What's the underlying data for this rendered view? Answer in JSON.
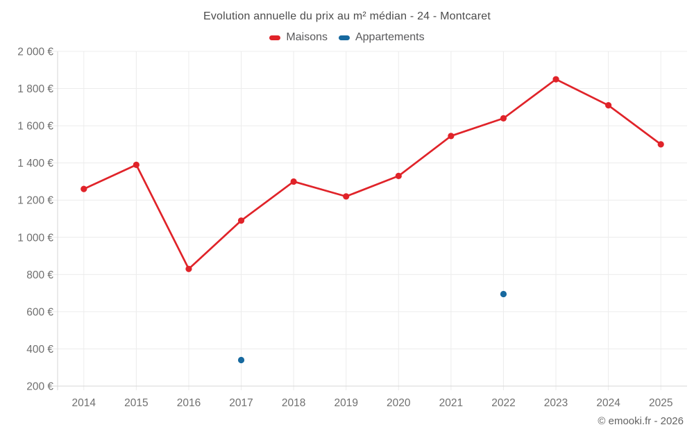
{
  "header": {
    "title": "Evolution annuelle du prix au m² médian - 24 - Montcaret"
  },
  "legend": {
    "items": [
      {
        "label": "Maisons",
        "color": "#e02329"
      },
      {
        "label": "Appartements",
        "color": "#17699f"
      }
    ]
  },
  "footer": {
    "credit": "© emooki.fr - 2026"
  },
  "colors": {
    "maisons": "#e02329",
    "appartements": "#17699f",
    "gridline": "#ececec",
    "axis": "#d6d6d6",
    "tick_text": "#6f6f6f",
    "title_text": "#4c4c4c"
  },
  "chart_data": {
    "type": "line",
    "title": "Evolution annuelle du prix au m² médian - 24 - Montcaret",
    "xlabel": "",
    "ylabel": "",
    "grid": true,
    "legend_position": "top",
    "categories": [
      "2014",
      "2015",
      "2016",
      "2017",
      "2018",
      "2019",
      "2020",
      "2021",
      "2022",
      "2023",
      "2024",
      "2025"
    ],
    "series": [
      {
        "name": "Maisons",
        "type": "line",
        "color": "#e02329",
        "values": [
          1260,
          1390,
          830,
          1090,
          1300,
          1220,
          1330,
          1545,
          1640,
          1850,
          1710,
          1500
        ]
      },
      {
        "name": "Appartements",
        "type": "scatter",
        "color": "#17699f",
        "values": [
          null,
          null,
          null,
          340,
          null,
          null,
          null,
          null,
          695,
          null,
          null,
          null
        ]
      }
    ],
    "ylim": [
      200,
      2000
    ],
    "yticks": [
      {
        "value": 200,
        "label": "200 €"
      },
      {
        "value": 400,
        "label": "400 €"
      },
      {
        "value": 600,
        "label": "600 €"
      },
      {
        "value": 800,
        "label": "800 €"
      },
      {
        "value": 1000,
        "label": "1 000 €"
      },
      {
        "value": 1200,
        "label": "1 200 €"
      },
      {
        "value": 1400,
        "label": "1 400 €"
      },
      {
        "value": 1600,
        "label": "1 600 €"
      },
      {
        "value": 1800,
        "label": "1 800 €"
      },
      {
        "value": 2000,
        "label": "2 000 €"
      }
    ]
  }
}
